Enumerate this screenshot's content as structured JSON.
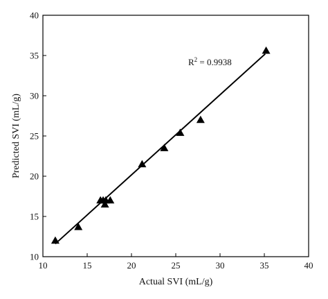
{
  "chart_data": {
    "type": "scatter",
    "xlabel": "Actual SVI (mL/g)",
    "ylabel": "Predicted SVI (mL/g)",
    "xlim": [
      10,
      40
    ],
    "ylim": [
      10,
      40
    ],
    "xticks": [
      10,
      15,
      20,
      25,
      30,
      35,
      40
    ],
    "yticks": [
      10,
      15,
      20,
      25,
      30,
      35,
      40
    ],
    "grid": false,
    "marker": "triangle",
    "marker_color": "#000000",
    "annotation": {
      "text": "R",
      "superscript": "2",
      "value": " = 0.9938"
    },
    "points": [
      {
        "x": 11.4,
        "y": 12.0
      },
      {
        "x": 14.0,
        "y": 13.7
      },
      {
        "x": 16.5,
        "y": 17.0
      },
      {
        "x": 16.8,
        "y": 17.0
      },
      {
        "x": 17.0,
        "y": 16.5
      },
      {
        "x": 17.1,
        "y": 17.0
      },
      {
        "x": 17.6,
        "y": 17.0
      },
      {
        "x": 21.2,
        "y": 21.5
      },
      {
        "x": 23.7,
        "y": 23.5
      },
      {
        "x": 25.5,
        "y": 25.4
      },
      {
        "x": 27.8,
        "y": 27.0
      },
      {
        "x": 35.2,
        "y": 35.6
      }
    ],
    "fit_line": {
      "x": [
        11.4,
        35.1
      ],
      "y": [
        11.6,
        35.2
      ]
    }
  }
}
